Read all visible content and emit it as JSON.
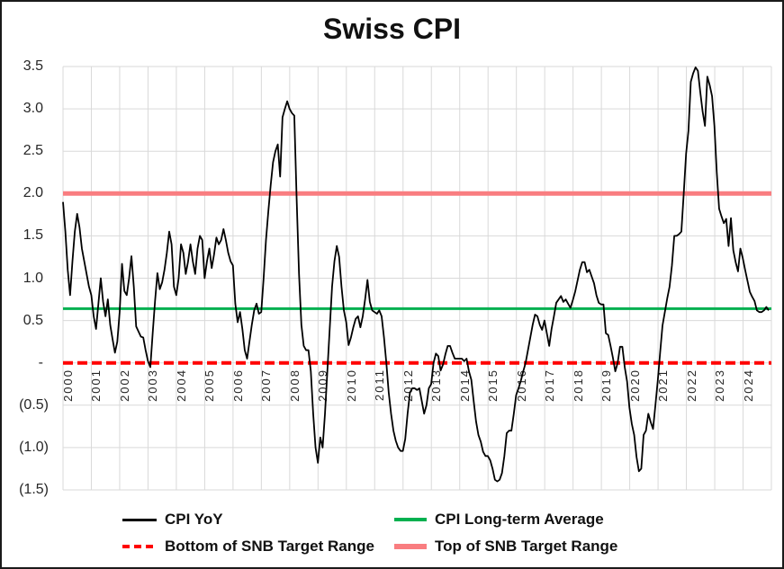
{
  "title": "Swiss CPI",
  "y_axis": {
    "ticks": [
      {
        "label": "3.5",
        "value": 3.5
      },
      {
        "label": "3.0",
        "value": 3.0
      },
      {
        "label": "2.5",
        "value": 2.5
      },
      {
        "label": "2.0",
        "value": 2.0
      },
      {
        "label": "1.5",
        "value": 1.5
      },
      {
        "label": "1.0",
        "value": 1.0
      },
      {
        "label": "0.5",
        "value": 0.5
      },
      {
        "label": "-",
        "value": 0.0
      },
      {
        "label": "(0.5)",
        "value": -0.5
      },
      {
        "label": "(1.0)",
        "value": -1.0
      },
      {
        "label": "(1.5)",
        "value": -1.5
      }
    ]
  },
  "x_axis": {
    "years": [
      "2000",
      "2001",
      "2002",
      "2003",
      "2004",
      "2005",
      "2006",
      "2007",
      "2008",
      "2009",
      "2010",
      "2011",
      "2012",
      "2013",
      "2014",
      "2015",
      "2016",
      "2017",
      "2018",
      "2019",
      "2020",
      "2021",
      "2022",
      "2023",
      "2024"
    ]
  },
  "legend": {
    "items": [
      {
        "label": "CPI YoY",
        "color": "#000000",
        "style": "solid"
      },
      {
        "label": "CPI Long-term Average",
        "color": "#00B050",
        "style": "solid"
      },
      {
        "label": "Bottom of SNB Target Range",
        "color": "#FF0000",
        "style": "dashed"
      },
      {
        "label": "Top of SNB Target Range",
        "color": "#F97D80",
        "style": "solid"
      }
    ]
  },
  "colors": {
    "cpi_line": "#000000",
    "long_term_average": "#00B050",
    "snb_bottom": "#FF0000",
    "snb_top": "#F97D80",
    "gridline": "#D9D9D9"
  },
  "chart_data": {
    "type": "line",
    "title": "Swiss CPI",
    "x_start": "2000-01",
    "x_end": "2024-12",
    "x_frequency": "monthly",
    "x_tick_labels": [
      "2000",
      "2001",
      "2002",
      "2003",
      "2004",
      "2005",
      "2006",
      "2007",
      "2008",
      "2009",
      "2010",
      "2011",
      "2012",
      "2013",
      "2014",
      "2015",
      "2016",
      "2017",
      "2018",
      "2019",
      "2020",
      "2021",
      "2022",
      "2023",
      "2024"
    ],
    "ylim": [
      -1.5,
      3.5
    ],
    "y_tick_step": 0.5,
    "grid": true,
    "legend_position": "bottom",
    "series": [
      {
        "name": "CPI YoY",
        "type": "line",
        "values": [
          1.9,
          1.55,
          1.1,
          0.8,
          1.2,
          1.55,
          1.76,
          1.6,
          1.35,
          1.2,
          1.05,
          0.9,
          0.8,
          0.55,
          0.4,
          0.7,
          1.0,
          0.72,
          0.55,
          0.75,
          0.45,
          0.28,
          0.12,
          0.25,
          0.6,
          1.17,
          0.85,
          0.8,
          1.0,
          1.26,
          0.9,
          0.43,
          0.37,
          0.31,
          0.3,
          0.15,
          0.02,
          -0.05,
          0.35,
          0.73,
          1.06,
          0.87,
          0.95,
          1.1,
          1.3,
          1.55,
          1.4,
          0.9,
          0.8,
          1.0,
          1.4,
          1.3,
          1.05,
          1.2,
          1.4,
          1.2,
          1.05,
          1.35,
          1.5,
          1.45,
          1.0,
          1.2,
          1.35,
          1.12,
          1.28,
          1.48,
          1.4,
          1.45,
          1.58,
          1.45,
          1.3,
          1.2,
          1.15,
          0.7,
          0.48,
          0.6,
          0.4,
          0.15,
          0.05,
          0.25,
          0.45,
          0.62,
          0.7,
          0.58,
          0.6,
          1.0,
          1.45,
          1.79,
          2.1,
          2.37,
          2.5,
          2.58,
          2.2,
          2.9,
          3.0,
          3.09,
          3.0,
          2.95,
          2.92,
          1.93,
          1.05,
          0.45,
          0.2,
          0.15,
          0.15,
          -0.1,
          -0.6,
          -1.0,
          -1.18,
          -0.88,
          -1.0,
          -0.6,
          -0.1,
          0.4,
          0.9,
          1.2,
          1.38,
          1.25,
          0.9,
          0.62,
          0.48,
          0.21,
          0.3,
          0.42,
          0.52,
          0.55,
          0.42,
          0.55,
          0.75,
          0.98,
          0.72,
          0.62,
          0.6,
          0.58,
          0.62,
          0.55,
          0.3,
          0.0,
          -0.35,
          -0.6,
          -0.8,
          -0.92,
          -1.0,
          -1.04,
          -1.04,
          -0.9,
          -0.6,
          -0.35,
          -0.3,
          -0.3,
          -0.32,
          -0.3,
          -0.45,
          -0.6,
          -0.5,
          -0.3,
          -0.25,
          0.0,
          0.11,
          0.08,
          -0.09,
          -0.02,
          0.1,
          0.2,
          0.2,
          0.12,
          0.05,
          0.05,
          0.05,
          0.05,
          0.02,
          0.05,
          -0.1,
          -0.2,
          -0.45,
          -0.69,
          -0.85,
          -0.93,
          -1.05,
          -1.1,
          -1.1,
          -1.15,
          -1.25,
          -1.38,
          -1.4,
          -1.38,
          -1.3,
          -1.1,
          -0.83,
          -0.8,
          -0.8,
          -0.6,
          -0.38,
          -0.3,
          -0.21,
          -0.1,
          0.0,
          0.15,
          0.3,
          0.45,
          0.57,
          0.55,
          0.45,
          0.39,
          0.5,
          0.35,
          0.2,
          0.4,
          0.55,
          0.71,
          0.75,
          0.79,
          0.72,
          0.75,
          0.7,
          0.65,
          0.74,
          0.84,
          0.97,
          1.1,
          1.19,
          1.19,
          1.07,
          1.1,
          1.02,
          0.94,
          0.8,
          0.71,
          0.69,
          0.69,
          0.35,
          0.33,
          0.2,
          0.06,
          -0.1,
          0.0,
          0.19,
          0.19,
          -0.05,
          -0.22,
          -0.53,
          -0.72,
          -0.85,
          -1.11,
          -1.28,
          -1.25,
          -0.85,
          -0.8,
          -0.6,
          -0.7,
          -0.78,
          -0.5,
          -0.21,
          0.12,
          0.44,
          0.6,
          0.76,
          0.9,
          1.15,
          1.5,
          1.5,
          1.52,
          1.55,
          2.0,
          2.47,
          2.74,
          3.32,
          3.42,
          3.49,
          3.45,
          3.2,
          2.97,
          2.8,
          3.38,
          3.28,
          3.15,
          2.8,
          2.25,
          1.82,
          1.73,
          1.65,
          1.7,
          1.38,
          1.71,
          1.33,
          1.19,
          1.08,
          1.35,
          1.24,
          1.1,
          0.97,
          0.84,
          0.78,
          0.73,
          0.62,
          0.6,
          0.6,
          0.62,
          0.66,
          0.62
        ]
      },
      {
        "name": "CPI Long-term Average",
        "type": "hline",
        "value": 0.64
      },
      {
        "name": "Bottom of SNB Target Range",
        "type": "hline",
        "value": 0.0
      },
      {
        "name": "Top of SNB Target Range",
        "type": "hline",
        "value": 2.0
      }
    ]
  }
}
